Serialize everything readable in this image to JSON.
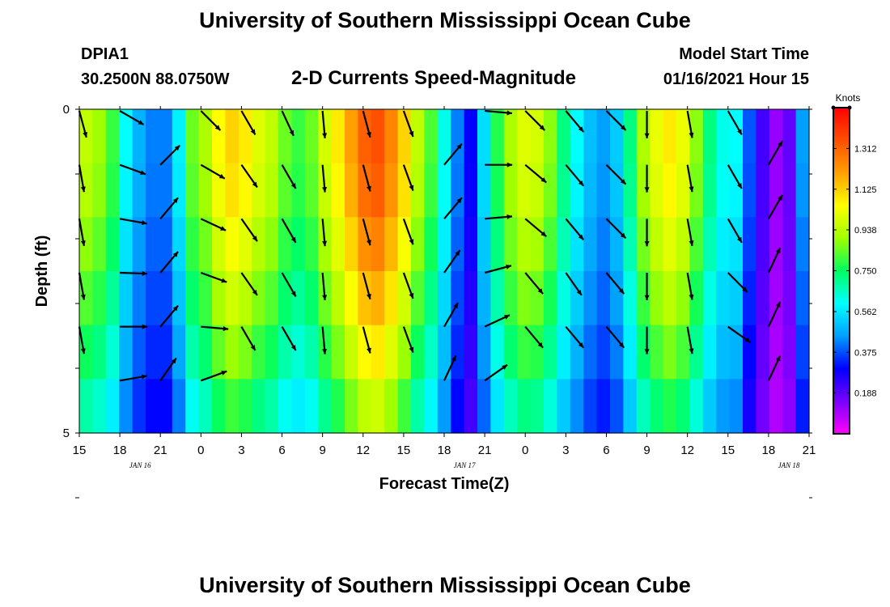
{
  "header": {
    "title": "University of Southern Mississippi Ocean Cube",
    "station_id": "DPIA1",
    "station_location": "30.2500N 88.0750W",
    "plot_title": "2-D Currents Speed-Magnitude",
    "model_start_label": "Model Start Time",
    "model_start_value": "01/16/2021 Hour 15"
  },
  "footer": {
    "title": "University of Southern Mississippi Ocean Cube"
  },
  "chart_data": {
    "type": "heatmap",
    "xlabel": "Forecast Time(Z)",
    "ylabel": "Depth (ft)",
    "x_ticks": [
      "15",
      "18",
      "21",
      "0",
      "3",
      "6",
      "9",
      "12",
      "15",
      "18",
      "21",
      "0",
      "3",
      "6",
      "9",
      "12",
      "15",
      "18",
      "21"
    ],
    "x_date_labels": [
      "JAN 16",
      "JAN 17",
      "JAN 18"
    ],
    "y_ticks": [
      "0",
      "5"
    ],
    "ylim": [
      0,
      5
    ],
    "x_range_hours": [
      0,
      54
    ],
    "colorbar": {
      "title": "Knots",
      "ticks": [
        "1.312",
        "1.125",
        "0.938",
        "0.750",
        "0.562",
        "0.375",
        "0.188"
      ],
      "range": [
        0,
        1.5
      ],
      "colors": [
        "#ff00ff",
        "#7a00ff",
        "#0000ff",
        "#00a0ff",
        "#00ffff",
        "#00ff60",
        "#a0ff00",
        "#ffff00",
        "#ffa000",
        "#ff5000",
        "#ff0000"
      ]
    },
    "columns_speed": [
      0.95,
      0.9,
      0.8,
      0.6,
      0.48,
      0.42,
      0.42,
      0.58,
      0.85,
      0.92,
      1.05,
      1.12,
      1.08,
      1.0,
      0.95,
      0.85,
      0.8,
      0.85,
      0.98,
      1.08,
      1.2,
      1.32,
      1.35,
      1.25,
      1.12,
      0.95,
      0.82,
      0.62,
      0.42,
      0.3,
      0.55,
      0.78,
      0.92,
      1.0,
      0.98,
      0.88,
      0.72,
      0.6,
      0.5,
      0.45,
      0.52,
      0.72,
      0.92,
      1.02,
      1.08,
      1.02,
      0.88,
      0.72,
      0.62,
      0.6,
      0.38,
      0.22,
      0.12,
      0.18,
      0.45
    ],
    "depth_factor": [
      1.0,
      0.98,
      0.93,
      0.87,
      0.8,
      0.72
    ],
    "arrows": [
      {
        "t": 0,
        "d": 0,
        "dir": 165
      },
      {
        "t": 0,
        "d": 1,
        "dir": 170
      },
      {
        "t": 0,
        "d": 2,
        "dir": 170
      },
      {
        "t": 0,
        "d": 3,
        "dir": 170
      },
      {
        "t": 0,
        "d": 4,
        "dir": 170
      },
      {
        "t": 3,
        "d": 0,
        "dir": 120
      },
      {
        "t": 3,
        "d": 1,
        "dir": 110
      },
      {
        "t": 3,
        "d": 2,
        "dir": 100
      },
      {
        "t": 3,
        "d": 3,
        "dir": 92
      },
      {
        "t": 3,
        "d": 4,
        "dir": 90
      },
      {
        "t": 3,
        "d": 5,
        "dir": 80
      },
      {
        "t": 6,
        "d": 1,
        "dir": 45
      },
      {
        "t": 6,
        "d": 2,
        "dir": 40
      },
      {
        "t": 6,
        "d": 3,
        "dir": 40
      },
      {
        "t": 6,
        "d": 4,
        "dir": 40
      },
      {
        "t": 6,
        "d": 5,
        "dir": 35
      },
      {
        "t": 9,
        "d": 0,
        "dir": 135
      },
      {
        "t": 9,
        "d": 1,
        "dir": 120
      },
      {
        "t": 9,
        "d": 2,
        "dir": 115
      },
      {
        "t": 9,
        "d": 3,
        "dir": 110
      },
      {
        "t": 9,
        "d": 4,
        "dir": 95
      },
      {
        "t": 9,
        "d": 5,
        "dir": 70
      },
      {
        "t": 12,
        "d": 0,
        "dir": 150
      },
      {
        "t": 12,
        "d": 1,
        "dir": 145
      },
      {
        "t": 12,
        "d": 2,
        "dir": 145
      },
      {
        "t": 12,
        "d": 3,
        "dir": 145
      },
      {
        "t": 12,
        "d": 4,
        "dir": 150
      },
      {
        "t": 15,
        "d": 0,
        "dir": 155
      },
      {
        "t": 15,
        "d": 1,
        "dir": 150
      },
      {
        "t": 15,
        "d": 2,
        "dir": 150
      },
      {
        "t": 15,
        "d": 3,
        "dir": 150
      },
      {
        "t": 15,
        "d": 4,
        "dir": 150
      },
      {
        "t": 18,
        "d": 0,
        "dir": 175
      },
      {
        "t": 18,
        "d": 1,
        "dir": 175
      },
      {
        "t": 18,
        "d": 2,
        "dir": 175
      },
      {
        "t": 18,
        "d": 3,
        "dir": 175
      },
      {
        "t": 18,
        "d": 4,
        "dir": 175
      },
      {
        "t": 21,
        "d": 0,
        "dir": 165
      },
      {
        "t": 21,
        "d": 1,
        "dir": 165
      },
      {
        "t": 21,
        "d": 2,
        "dir": 165
      },
      {
        "t": 21,
        "d": 3,
        "dir": 165
      },
      {
        "t": 21,
        "d": 4,
        "dir": 165
      },
      {
        "t": 24,
        "d": 0,
        "dir": 160
      },
      {
        "t": 24,
        "d": 1,
        "dir": 160
      },
      {
        "t": 24,
        "d": 2,
        "dir": 160
      },
      {
        "t": 24,
        "d": 3,
        "dir": 160
      },
      {
        "t": 24,
        "d": 4,
        "dir": 160
      },
      {
        "t": 27,
        "d": 1,
        "dir": 40
      },
      {
        "t": 27,
        "d": 2,
        "dir": 40
      },
      {
        "t": 27,
        "d": 3,
        "dir": 35
      },
      {
        "t": 27,
        "d": 4,
        "dir": 30
      },
      {
        "t": 27,
        "d": 5,
        "dir": 25
      },
      {
        "t": 30,
        "d": 0,
        "dir": 95
      },
      {
        "t": 30,
        "d": 1,
        "dir": 90
      },
      {
        "t": 30,
        "d": 2,
        "dir": 85
      },
      {
        "t": 30,
        "d": 3,
        "dir": 75
      },
      {
        "t": 30,
        "d": 4,
        "dir": 65
      },
      {
        "t": 30,
        "d": 5,
        "dir": 55
      },
      {
        "t": 33,
        "d": 0,
        "dir": 135
      },
      {
        "t": 33,
        "d": 1,
        "dir": 130
      },
      {
        "t": 33,
        "d": 2,
        "dir": 130
      },
      {
        "t": 33,
        "d": 3,
        "dir": 140
      },
      {
        "t": 33,
        "d": 4,
        "dir": 140
      },
      {
        "t": 36,
        "d": 0,
        "dir": 140
      },
      {
        "t": 36,
        "d": 1,
        "dir": 140
      },
      {
        "t": 36,
        "d": 2,
        "dir": 140
      },
      {
        "t": 36,
        "d": 3,
        "dir": 145
      },
      {
        "t": 36,
        "d": 4,
        "dir": 140
      },
      {
        "t": 39,
        "d": 0,
        "dir": 135
      },
      {
        "t": 39,
        "d": 1,
        "dir": 135
      },
      {
        "t": 39,
        "d": 2,
        "dir": 135
      },
      {
        "t": 39,
        "d": 3,
        "dir": 140
      },
      {
        "t": 39,
        "d": 4,
        "dir": 140
      },
      {
        "t": 42,
        "d": 0,
        "dir": 180
      },
      {
        "t": 42,
        "d": 1,
        "dir": 180
      },
      {
        "t": 42,
        "d": 2,
        "dir": 180
      },
      {
        "t": 42,
        "d": 3,
        "dir": 180
      },
      {
        "t": 42,
        "d": 4,
        "dir": 180
      },
      {
        "t": 45,
        "d": 0,
        "dir": 170
      },
      {
        "t": 45,
        "d": 1,
        "dir": 170
      },
      {
        "t": 45,
        "d": 2,
        "dir": 170
      },
      {
        "t": 45,
        "d": 3,
        "dir": 170
      },
      {
        "t": 45,
        "d": 4,
        "dir": 170
      },
      {
        "t": 48,
        "d": 0,
        "dir": 150
      },
      {
        "t": 48,
        "d": 1,
        "dir": 150
      },
      {
        "t": 48,
        "d": 2,
        "dir": 150
      },
      {
        "t": 48,
        "d": 3,
        "dir": 135
      },
      {
        "t": 48,
        "d": 4,
        "dir": 125
      },
      {
        "t": 51,
        "d": 1,
        "dir": 30
      },
      {
        "t": 51,
        "d": 2,
        "dir": 30
      },
      {
        "t": 51,
        "d": 3,
        "dir": 25
      },
      {
        "t": 51,
        "d": 4,
        "dir": 25
      },
      {
        "t": 51,
        "d": 5,
        "dir": 25
      }
    ]
  }
}
